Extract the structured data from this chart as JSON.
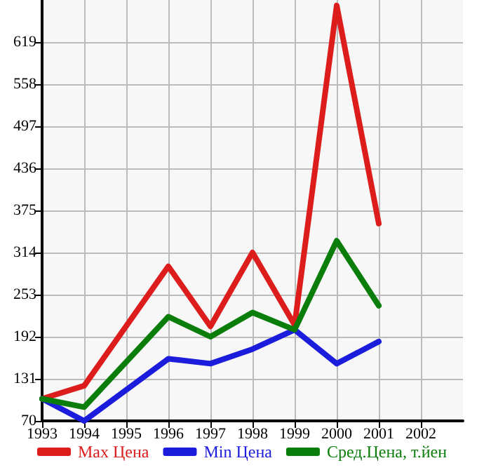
{
  "chart_data": {
    "type": "line",
    "x": [
      1993,
      1994,
      1996,
      1997,
      1998,
      1999,
      2000,
      2001
    ],
    "series": [
      {
        "name": "Max Цена",
        "color": "#dd1c1c",
        "values": [
          102,
          121,
          294,
          207,
          314,
          209,
          672,
          356
        ]
      },
      {
        "name": "Min Цена",
        "color": "#1c1cdd",
        "values": [
          102,
          70,
          160,
          153,
          174,
          202,
          153,
          185
        ]
      },
      {
        "name": "Сред.Цена, т.йен",
        "color": "#0a7d0a",
        "values": [
          102,
          90,
          221,
          192,
          227,
          202,
          331,
          237
        ]
      }
    ],
    "xlim": [
      1993,
      2003
    ],
    "xticks": [
      1993,
      1994,
      1995,
      1996,
      1997,
      1998,
      1999,
      2000,
      2001,
      2002
    ],
    "ylim": [
      70,
      680
    ],
    "yticks": [
      70,
      131,
      192,
      253,
      314,
      375,
      436,
      497,
      558,
      619
    ],
    "grid": true,
    "legend": "bottom",
    "marker": "none",
    "line_style": "solid"
  }
}
